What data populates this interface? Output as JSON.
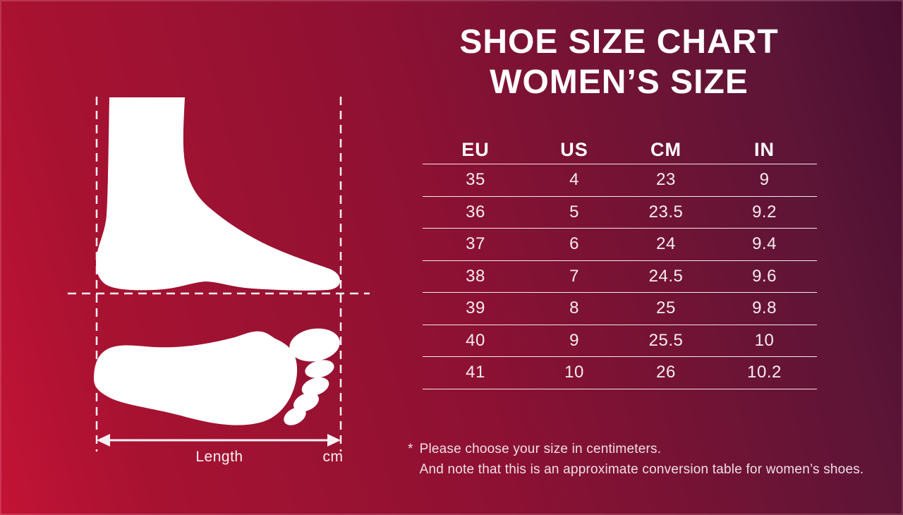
{
  "title": {
    "line1": "SHOE SIZE CHART",
    "line2": "WOMEN’S SIZE"
  },
  "table": {
    "columns": [
      "EU",
      "US",
      "CM",
      "IN"
    ],
    "rows": [
      [
        "35",
        "4",
        "23",
        "9"
      ],
      [
        "36",
        "5",
        "23.5",
        "9.2"
      ],
      [
        "37",
        "6",
        "24",
        "9.4"
      ],
      [
        "38",
        "7",
        "24.5",
        "9.6"
      ],
      [
        "39",
        "8",
        "25",
        "9.8"
      ],
      [
        "40",
        "9",
        "25.5",
        "10"
      ],
      [
        "41",
        "10",
        "26",
        "10.2"
      ]
    ]
  },
  "diagram": {
    "length_label": "Length",
    "unit_label": "cm"
  },
  "footnote": {
    "marker": "*",
    "line1": "Please choose your size in centimeters.",
    "line2": "And note that this is an approximate conversion table for women’s shoes."
  },
  "colors": {
    "background_gradient_start": "#c31335",
    "background_gradient_end": "#470e30",
    "text_white": "#ffffff",
    "table_line": "#f3e9ed",
    "foot_silhouette": "#ffffff"
  },
  "chart_data": {
    "type": "table",
    "title": "SHOE SIZE CHART WOMEN’S SIZE",
    "columns": [
      "EU",
      "US",
      "CM",
      "IN"
    ],
    "rows": [
      [
        35,
        4,
        23,
        9
      ],
      [
        36,
        5,
        23.5,
        9.2
      ],
      [
        37,
        6,
        24,
        9.4
      ],
      [
        38,
        7,
        24.5,
        9.6
      ],
      [
        39,
        8,
        25,
        9.8
      ],
      [
        40,
        9,
        25.5,
        10
      ],
      [
        41,
        10,
        26,
        10.2
      ]
    ],
    "notes": [
      "Please choose your size in centimeters.",
      "And note that this is an approximate conversion table for women’s shoes."
    ]
  }
}
